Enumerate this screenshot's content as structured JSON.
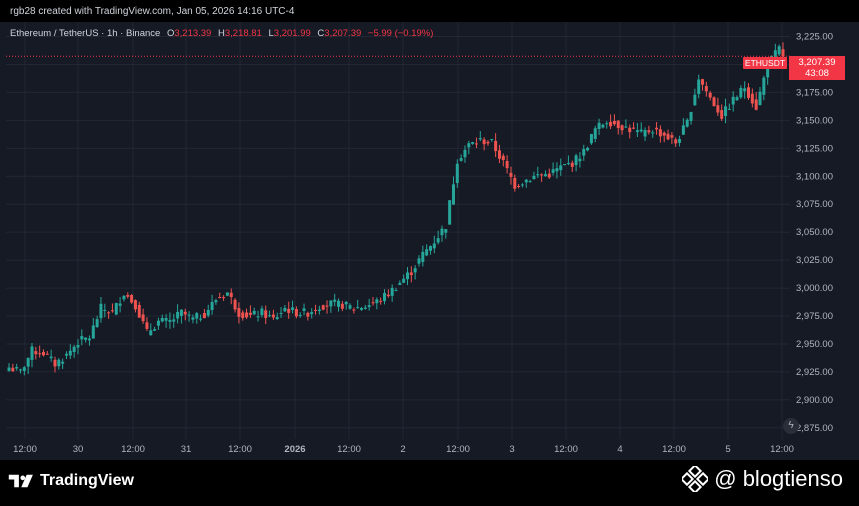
{
  "header": {
    "caption": "rgb28 created with TradingView.com, Jan 05, 2026 14:16 UTC-4"
  },
  "legend": {
    "symbol_line": "Ethereum / TetherUS · 1h · Binance",
    "open_label": "O",
    "open_value": "3,213.39",
    "high_label": "H",
    "high_value": "3,218.81",
    "low_label": "L",
    "low_value": "3,201.99",
    "close_label": "C",
    "close_value": "3,207.39",
    "change_value": "−5.99 (−0.19%)"
  },
  "price_badge": {
    "symbol": "ETHUSDT",
    "price": "3,207.39",
    "countdown": "43:08"
  },
  "footer": {
    "brand": "TradingView",
    "watermark": "@ blogtienso"
  },
  "colors": {
    "up": "#26a69a",
    "down": "#ef5350",
    "background": "#161a25",
    "grid": "#232734",
    "axis_text": "#b2b5be",
    "badge": "#f23645"
  },
  "chart_data": {
    "type": "candlestick",
    "pair": "ETHUSDT",
    "interval": "1h",
    "ylim": [
      2865,
      3238
    ],
    "yticks": [
      2875,
      2900,
      2925,
      2950,
      2975,
      3000,
      3025,
      3050,
      3075,
      3100,
      3125,
      3150,
      3175,
      3200,
      3225
    ],
    "ytick_labels": [
      "2,875.00",
      "2,900.00",
      "2,925.00",
      "2,950.00",
      "2,975.00",
      "3,000.00",
      "3,025.00",
      "3,050.00",
      "3,075.00",
      "3,100.00",
      "3,125.00",
      "3,150.00",
      "3,175.00",
      "3,200.00",
      "3,225.00"
    ],
    "xticks": [
      "12:00",
      "30",
      "12:00",
      "31",
      "12:00",
      "2026",
      "12:00",
      "2",
      "12:00",
      "3",
      "12:00",
      "4",
      "12:00",
      "5",
      "12:00"
    ],
    "last_price": 3207.39,
    "price_line": 3207.39,
    "anchors": [
      [
        0,
        2929
      ],
      [
        3,
        2925
      ],
      [
        6,
        2944
      ],
      [
        9,
        2942
      ],
      [
        12,
        2932
      ],
      [
        15,
        2940
      ],
      [
        18,
        2952
      ],
      [
        21,
        2956
      ],
      [
        24,
        2982
      ],
      [
        27,
        2978
      ],
      [
        30,
        2996
      ],
      [
        33,
        2985
      ],
      [
        36,
        2960
      ],
      [
        39,
        2970
      ],
      [
        42,
        2970
      ],
      [
        45,
        2978
      ],
      [
        48,
        2972
      ],
      [
        51,
        2977
      ],
      [
        54,
        2990
      ],
      [
        57,
        2996
      ],
      [
        60,
        2978
      ],
      [
        63,
        2975
      ],
      [
        66,
        2978
      ],
      [
        69,
        2972
      ],
      [
        72,
        2982
      ],
      [
        75,
        2978
      ],
      [
        78,
        2978
      ],
      [
        81,
        2984
      ],
      [
        84,
        2986
      ],
      [
        87,
        2985
      ],
      [
        90,
        2982
      ],
      [
        93,
        2984
      ],
      [
        96,
        2988
      ],
      [
        99,
        2995
      ],
      [
        102,
        3005
      ],
      [
        105,
        3015
      ],
      [
        108,
        3030
      ],
      [
        111,
        3042
      ],
      [
        114,
        3056
      ],
      [
        117,
        3115
      ],
      [
        120,
        3128
      ],
      [
        123,
        3132
      ],
      [
        126,
        3130
      ],
      [
        129,
        3112
      ],
      [
        132,
        3092
      ],
      [
        135,
        3097
      ],
      [
        138,
        3101
      ],
      [
        141,
        3102
      ],
      [
        144,
        3108
      ],
      [
        147,
        3112
      ],
      [
        150,
        3122
      ],
      [
        153,
        3142
      ],
      [
        156,
        3150
      ],
      [
        159,
        3146
      ],
      [
        162,
        3142
      ],
      [
        165,
        3138
      ],
      [
        168,
        3142
      ],
      [
        171,
        3137
      ],
      [
        174,
        3130
      ],
      [
        177,
        3148
      ],
      [
        180,
        3188
      ],
      [
        183,
        3170
      ],
      [
        186,
        3154
      ],
      [
        189,
        3168
      ],
      [
        192,
        3180
      ],
      [
        195,
        3162
      ],
      [
        198,
        3200
      ],
      [
        201,
        3214
      ],
      [
        202,
        3207
      ]
    ]
  }
}
